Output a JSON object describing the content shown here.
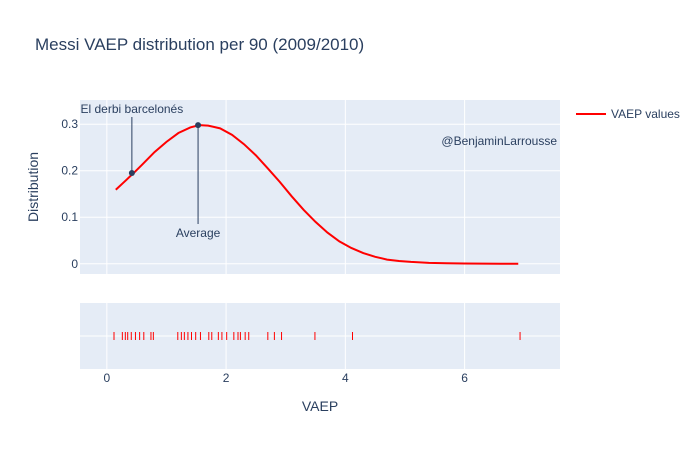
{
  "chart_data": {
    "type": "line",
    "title": "Messi VAEP distribution per 90 (2009/2010)",
    "xlabel": "VAEP",
    "ylabel": "Distribution",
    "xlim": [
      -0.45,
      7.6
    ],
    "ylim": [
      -0.022,
      0.352
    ],
    "x_ticks": [
      0,
      2,
      4,
      6
    ],
    "y_ticks": [
      0,
      0.1,
      0.2,
      0.3
    ],
    "y_tick_labels": [
      "0",
      "0.1",
      "0.2",
      "0.3"
    ],
    "grid": true,
    "legend_position": "top-right",
    "colors": {
      "series": "#ff0000",
      "annotation": "#2a3f5f",
      "plot_bg": "#e5ecf6",
      "grid": "#ffffff"
    },
    "series": [
      {
        "name": "VAEP values",
        "x": [
          0.15,
          0.3,
          0.45,
          0.6,
          0.8,
          1.0,
          1.2,
          1.4,
          1.55,
          1.7,
          1.9,
          2.1,
          2.3,
          2.5,
          2.7,
          2.9,
          3.1,
          3.3,
          3.5,
          3.7,
          3.9,
          4.1,
          4.3,
          4.5,
          4.7,
          4.9,
          5.1,
          5.4,
          5.7,
          6.0,
          6.3,
          6.6,
          6.9
        ],
        "values": [
          0.159,
          0.177,
          0.195,
          0.214,
          0.24,
          0.262,
          0.281,
          0.293,
          0.298,
          0.297,
          0.291,
          0.277,
          0.257,
          0.233,
          0.205,
          0.176,
          0.145,
          0.116,
          0.09,
          0.067,
          0.048,
          0.034,
          0.023,
          0.015,
          0.009,
          0.006,
          0.004,
          0.002,
          0.001,
          0.0005,
          0.0003,
          0.0001,
          0.0
        ]
      }
    ],
    "rug": [
      0.12,
      0.26,
      0.31,
      0.35,
      0.41,
      0.48,
      0.55,
      0.62,
      0.74,
      0.78,
      1.19,
      1.25,
      1.3,
      1.36,
      1.42,
      1.49,
      1.57,
      1.71,
      1.76,
      1.87,
      1.93,
      2.01,
      2.13,
      2.2,
      2.24,
      2.32,
      2.38,
      2.7,
      2.81,
      2.93,
      3.49,
      4.12,
      6.93
    ],
    "annotations": [
      {
        "text": "El derbi barcelonés",
        "x": 0.42,
        "y": 0.195
      },
      {
        "text": "Average",
        "x": 1.53,
        "y": 0.298
      },
      {
        "text": "@BenjaminLarrousse"
      }
    ]
  }
}
